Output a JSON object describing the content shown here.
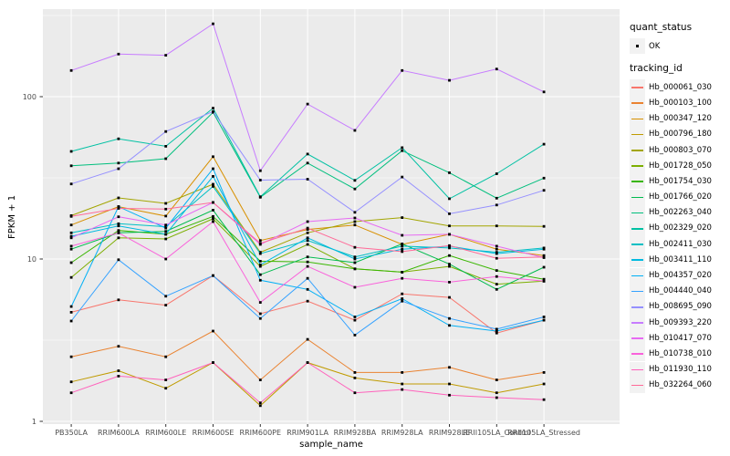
{
  "chart_data": {
    "type": "line",
    "title": "",
    "xlabel": "sample_name",
    "ylabel": "FPKM + 1",
    "y_scale": "log10",
    "ylim": [
      1,
      350
    ],
    "y_ticks": [
      1,
      10,
      100
    ],
    "y_minor_ticks": [
      3.162,
      31.62,
      316.2
    ],
    "grid": true,
    "legend_position": "right",
    "point_marker": "small-black-square",
    "categories": [
      "PB350LA",
      "RRIM600LA",
      "RRIM600LE",
      "RRIM600SE",
      "RRIM600PE",
      "RRIM901LA",
      "RRIM928BA",
      "RRIM928LA",
      "RRIM928LE",
      "RRII105LA_Control",
      "RRII105LA_Stressed"
    ],
    "series": [
      {
        "name": "Hb_000061_030",
        "color": "#F8766D",
        "values": [
          4.7,
          5.6,
          5.2,
          7.9,
          4.6,
          5.5,
          4.2,
          6.1,
          5.8,
          3.5,
          4.2
        ]
      },
      {
        "name": "Hb_000103_100",
        "color": "#EA8331",
        "values": [
          2.5,
          2.9,
          2.5,
          3.6,
          1.8,
          3.2,
          2.0,
          2.0,
          2.15,
          1.8,
          2.0
        ]
      },
      {
        "name": "Hb_000347_120",
        "color": "#D89000",
        "values": [
          16.2,
          21.0,
          18.4,
          42.7,
          13.0,
          15.2,
          16.2,
          12.3,
          14.2,
          11.5,
          10.5
        ]
      },
      {
        "name": "Hb_000796_180",
        "color": "#C09B00",
        "values": [
          1.75,
          2.05,
          1.6,
          2.3,
          1.25,
          2.3,
          1.85,
          1.7,
          1.7,
          1.5,
          1.7
        ]
      },
      {
        "name": "Hb_000803_070",
        "color": "#A3A500",
        "values": [
          18.5,
          23.8,
          22.0,
          28.9,
          11.0,
          14.5,
          17.0,
          18.0,
          16.0,
          16.0,
          15.9
        ]
      },
      {
        "name": "Hb_001728_050",
        "color": "#7CAE00",
        "values": [
          7.7,
          13.5,
          13.3,
          17.7,
          9.0,
          12.3,
          8.7,
          8.3,
          9.0,
          7.0,
          7.3
        ]
      },
      {
        "name": "Hb_001754_030",
        "color": "#39B600",
        "values": [
          9.5,
          15.0,
          14.2,
          18.3,
          9.7,
          9.6,
          8.7,
          8.3,
          10.5,
          8.5,
          7.5
        ]
      },
      {
        "name": "Hb_001766_020",
        "color": "#00BB4E",
        "values": [
          11.5,
          14.5,
          14.8,
          20.0,
          8.0,
          10.3,
          9.5,
          12.4,
          9.3,
          6.5,
          8.9
        ]
      },
      {
        "name": "Hb_002263_040",
        "color": "#00BF7D",
        "values": [
          37.5,
          39.0,
          41.5,
          80.0,
          24.0,
          39.0,
          27.0,
          46.5,
          34.0,
          23.7,
          31.5
        ]
      },
      {
        "name": "Hb_002329_020",
        "color": "#00C1A3",
        "values": [
          46.0,
          55.0,
          49.5,
          85.0,
          24.2,
          44.3,
          30.5,
          48.5,
          23.5,
          33.5,
          51.0
        ]
      },
      {
        "name": "Hb_002411_030",
        "color": "#00BFC4",
        "values": [
          14.5,
          16.5,
          15.8,
          28.0,
          10.8,
          13.0,
          10.3,
          12.0,
          11.7,
          11.0,
          11.7
        ]
      },
      {
        "name": "Hb_003411_110",
        "color": "#00BAE0",
        "values": [
          13.8,
          16.0,
          14.2,
          32.3,
          9.2,
          13.5,
          10.0,
          11.5,
          12.0,
          10.8,
          11.5
        ]
      },
      {
        "name": "Hb_004357_020",
        "color": "#00B0F6",
        "values": [
          5.1,
          21.0,
          15.5,
          36.0,
          7.4,
          6.5,
          4.4,
          5.7,
          3.9,
          3.6,
          4.2
        ]
      },
      {
        "name": "Hb_004440_040",
        "color": "#35A2FF",
        "values": [
          4.15,
          9.9,
          5.9,
          7.9,
          4.3,
          7.6,
          3.4,
          5.5,
          4.3,
          3.7,
          4.4
        ]
      },
      {
        "name": "Hb_008695_090",
        "color": "#9590FF",
        "values": [
          29.0,
          36.0,
          61.0,
          81.0,
          30.6,
          31.0,
          19.4,
          32.0,
          19.0,
          21.5,
          26.5
        ]
      },
      {
        "name": "Hb_009393_220",
        "color": "#C77CFF",
        "values": [
          145,
          183,
          180,
          281,
          35.0,
          90.0,
          62.0,
          145,
          126,
          148,
          107
        ]
      },
      {
        "name": "Hb_010417_070",
        "color": "#E76BF3",
        "values": [
          13.5,
          18.2,
          16.2,
          22.3,
          12.3,
          17.0,
          17.9,
          14.0,
          14.2,
          12.0,
          10.2
        ]
      },
      {
        "name": "Hb_010738_010",
        "color": "#FA62DB",
        "values": [
          12.0,
          14.5,
          10.0,
          17.0,
          5.4,
          9.0,
          6.7,
          7.6,
          7.2,
          7.8,
          7.3
        ]
      },
      {
        "name": "Hb_011930_110",
        "color": "#FF62BC",
        "values": [
          1.5,
          1.9,
          1.8,
          2.3,
          1.3,
          2.3,
          1.5,
          1.57,
          1.45,
          1.4,
          1.36
        ]
      },
      {
        "name": "Hb_032264_060",
        "color": "#FF6A98",
        "values": [
          18.3,
          20.5,
          20.3,
          22.3,
          12.5,
          15.5,
          11.8,
          11.1,
          12.1,
          10.1,
          10.3
        ]
      }
    ]
  },
  "legend": {
    "quant_status": {
      "title": "quant_status",
      "items": [
        "OK"
      ]
    },
    "tracking_id": {
      "title": "tracking_id"
    }
  },
  "colors": {
    "panel_bg": "#EBEBEB",
    "grid": "#FFFFFF",
    "axis_text": "#4D4D4D",
    "tick_mark": "#333333",
    "point": "#000000",
    "legend_key_bg": "#F2F2F2"
  }
}
